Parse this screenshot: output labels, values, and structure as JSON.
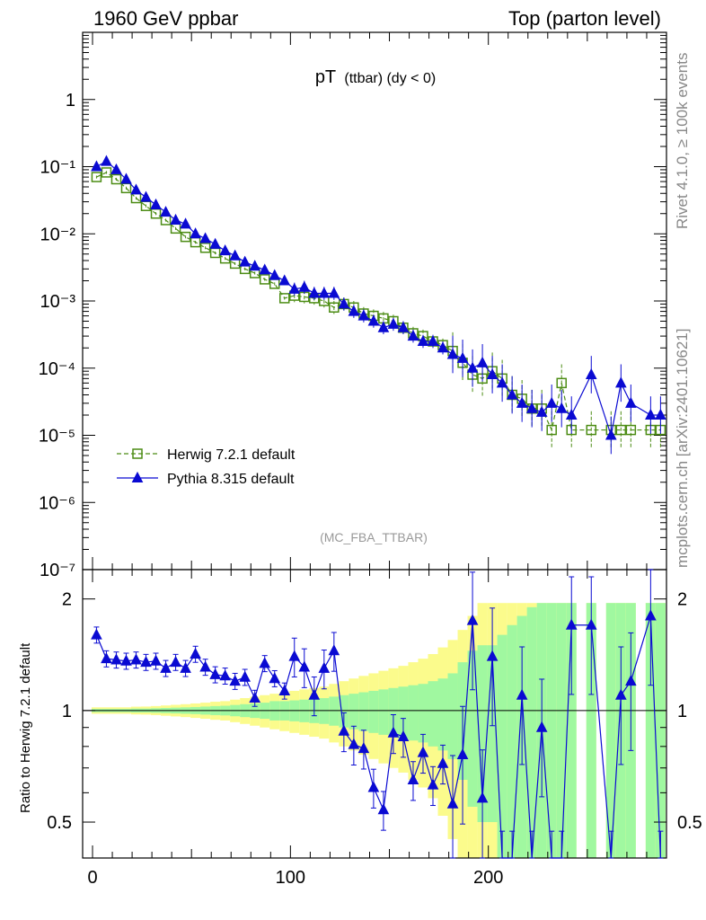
{
  "header": {
    "left": "1960 GeV ppbar",
    "right": "Top (parton level)"
  },
  "side_labels": {
    "rivet": "Rivet 4.1.0, ≥ 100k events",
    "source": "mcplots.cern.ch [arXiv:2401.10621]"
  },
  "chart_data": [
    {
      "type": "scatter",
      "title_main": "pT",
      "title_sub": "(ttbar) (dy < 0)",
      "annotation": "(MC_FBA_TTBAR)",
      "yscale": "log",
      "xlim": [
        -5,
        290
      ],
      "ylim": [
        1e-07,
        10
      ],
      "ytick_values": [
        1e-07,
        1e-06,
        1e-05,
        0.0001,
        0.001,
        0.01,
        0.1,
        1
      ],
      "ytick_labels": [
        "10⁻⁷",
        "10⁻⁶",
        "10⁻⁵",
        "10⁻⁴",
        "10⁻³",
        "10⁻²",
        "10⁻¹",
        "1"
      ],
      "legend_position": "bottom-left",
      "series": [
        {
          "name": "Herwig 7.2.1 default",
          "color": "#4c8c14",
          "marker": "open-square",
          "line": "dashed",
          "x": [
            2,
            7,
            12,
            17,
            22,
            27,
            32,
            37,
            42,
            47,
            52,
            57,
            62,
            67,
            72,
            77,
            82,
            87,
            92,
            97,
            102,
            107,
            112,
            117,
            122,
            127,
            132,
            137,
            142,
            147,
            152,
            157,
            162,
            167,
            172,
            177,
            182,
            187,
            192,
            197,
            202,
            207,
            212,
            217,
            222,
            227,
            232,
            237,
            242,
            252,
            262,
            267,
            272,
            282,
            287
          ],
          "y": [
            0.07,
            0.082,
            0.065,
            0.048,
            0.034,
            0.026,
            0.02,
            0.016,
            0.012,
            0.009,
            0.0075,
            0.0062,
            0.0052,
            0.0043,
            0.0036,
            0.003,
            0.0026,
            0.0021,
            0.0018,
            0.0011,
            0.0012,
            0.00115,
            0.0011,
            0.001,
            0.0008,
            0.0009,
            0.0008,
            0.00065,
            0.0006,
            0.00055,
            0.0005,
            0.0004,
            0.00033,
            0.0003,
            0.00025,
            0.00022,
            0.00018,
            0.00012,
            8e-05,
            7e-05,
            9e-05,
            7e-05,
            4e-05,
            3.5e-05,
            2.5e-05,
            2.5e-05,
            1.2e-05,
            6e-05,
            1.2e-05,
            1.2e-05,
            1.2e-05,
            1.2e-05,
            1.2e-05,
            1.2e-05,
            1.2e-05
          ]
        },
        {
          "name": "Pythia 8.315 default",
          "color": "#0a0ad2",
          "marker": "filled-triangle",
          "line": "solid",
          "x": [
            2,
            7,
            12,
            17,
            22,
            27,
            32,
            37,
            42,
            47,
            52,
            57,
            62,
            67,
            72,
            77,
            82,
            87,
            92,
            97,
            102,
            107,
            112,
            117,
            122,
            127,
            132,
            137,
            142,
            147,
            152,
            157,
            162,
            167,
            172,
            177,
            182,
            187,
            192,
            197,
            202,
            207,
            212,
            217,
            222,
            227,
            232,
            237,
            242,
            252,
            262,
            267,
            272,
            282,
            287
          ],
          "y": [
            0.1,
            0.12,
            0.09,
            0.065,
            0.045,
            0.035,
            0.027,
            0.021,
            0.016,
            0.014,
            0.01,
            0.0085,
            0.007,
            0.0056,
            0.0047,
            0.0038,
            0.0033,
            0.0029,
            0.0024,
            0.002,
            0.0015,
            0.0016,
            0.0013,
            0.0013,
            0.0013,
            0.0009,
            0.0007,
            0.0006,
            0.0005,
            0.0004,
            0.00045,
            0.0004,
            0.0003,
            0.00025,
            0.00025,
            0.0002,
            0.00016,
            0.00014,
            0.0001,
            0.00012,
            8e-05,
            6e-05,
            4e-05,
            3e-05,
            2.5e-05,
            2.2e-05,
            3e-05,
            2.5e-05,
            2e-05,
            8e-05,
            1e-05,
            6e-05,
            3e-05,
            2e-05,
            2e-05
          ]
        }
      ]
    },
    {
      "type": "line",
      "ylabel": "Ratio to Herwig 7.2.1 default",
      "yscale": "log",
      "xlim": [
        -5,
        290
      ],
      "ylim": [
        0.4,
        2.4
      ],
      "xtick_labels": [
        "0",
        "100",
        "200"
      ],
      "ytick_values": [
        0.5,
        1,
        2
      ],
      "ytick_labels": [
        "0.5",
        "1",
        "2"
      ],
      "band_inner_color": "#a0f8a0",
      "band_outer_color": "#fbfb8c",
      "bands": {
        "x": [
          2,
          7,
          12,
          17,
          22,
          27,
          32,
          37,
          42,
          47,
          52,
          57,
          62,
          67,
          72,
          77,
          82,
          87,
          92,
          97,
          102,
          107,
          112,
          117,
          122,
          127,
          132,
          137,
          142,
          147,
          152,
          157,
          162,
          167,
          172,
          177,
          182,
          187,
          192,
          197,
          202,
          207,
          212,
          217,
          222,
          227,
          232,
          237,
          242,
          252,
          262,
          267,
          272,
          282,
          287
        ],
        "inner": [
          0.01,
          0.01,
          0.01,
          0.01,
          0.012,
          0.012,
          0.014,
          0.016,
          0.018,
          0.02,
          0.022,
          0.025,
          0.028,
          0.03,
          0.035,
          0.04,
          0.045,
          0.05,
          0.06,
          0.06,
          0.065,
          0.07,
          0.075,
          0.08,
          0.09,
          0.1,
          0.11,
          0.12,
          0.13,
          0.14,
          0.15,
          0.16,
          0.17,
          0.18,
          0.2,
          0.22,
          0.26,
          0.35,
          0.45,
          0.5,
          0.5,
          0.6,
          0.7,
          0.8,
          0.9,
          0.95,
          0.95,
          0.95,
          0.95,
          0.95,
          0.95,
          0.95,
          0.95,
          0.95,
          0.95
        ],
        "outer": [
          0.02,
          0.02,
          0.02,
          0.02,
          0.024,
          0.025,
          0.028,
          0.032,
          0.036,
          0.04,
          0.045,
          0.05,
          0.056,
          0.06,
          0.07,
          0.08,
          0.09,
          0.1,
          0.11,
          0.12,
          0.13,
          0.14,
          0.15,
          0.16,
          0.18,
          0.2,
          0.22,
          0.24,
          0.26,
          0.28,
          0.3,
          0.32,
          0.35,
          0.38,
          0.42,
          0.48,
          0.55,
          0.65,
          0.8,
          0.95,
          0.95,
          0.95,
          0.95,
          0.95,
          0.95,
          0.95,
          0.95,
          0.95,
          0.95,
          0.95,
          0.95,
          0.95,
          0.95,
          0.95,
          0.95
        ]
      },
      "series": [
        {
          "name": "Pythia 8.315 default",
          "color": "#0a0ad2",
          "marker": "filled-triangle",
          "x": [
            2,
            7,
            12,
            17,
            22,
            27,
            32,
            37,
            42,
            47,
            52,
            57,
            62,
            67,
            72,
            77,
            82,
            87,
            92,
            97,
            102,
            107,
            112,
            117,
            122,
            127,
            132,
            137,
            142,
            147,
            152,
            157,
            162,
            167,
            172,
            177,
            182,
            187,
            192,
            197,
            202,
            207,
            212,
            217,
            222,
            227,
            232,
            237,
            242,
            252,
            262,
            267,
            272,
            282,
            287
          ],
          "y": [
            1.6,
            1.38,
            1.37,
            1.36,
            1.37,
            1.35,
            1.36,
            1.3,
            1.35,
            1.3,
            1.42,
            1.31,
            1.25,
            1.24,
            1.2,
            1.23,
            1.08,
            1.34,
            1.22,
            1.13,
            1.4,
            1.31,
            1.1,
            1.3,
            1.45,
            0.88,
            0.81,
            0.79,
            0.62,
            0.54,
            0.87,
            0.85,
            0.65,
            0.77,
            0.63,
            0.72,
            0.56,
            0.76,
            1.75,
            0.58,
            1.4,
            0.35,
            0.35,
            1.1,
            0.35,
            0.9,
            0.35,
            0.35,
            1.7,
            1.7,
            0.35,
            1.1,
            1.2,
            1.8,
            0.35
          ]
        }
      ]
    }
  ]
}
